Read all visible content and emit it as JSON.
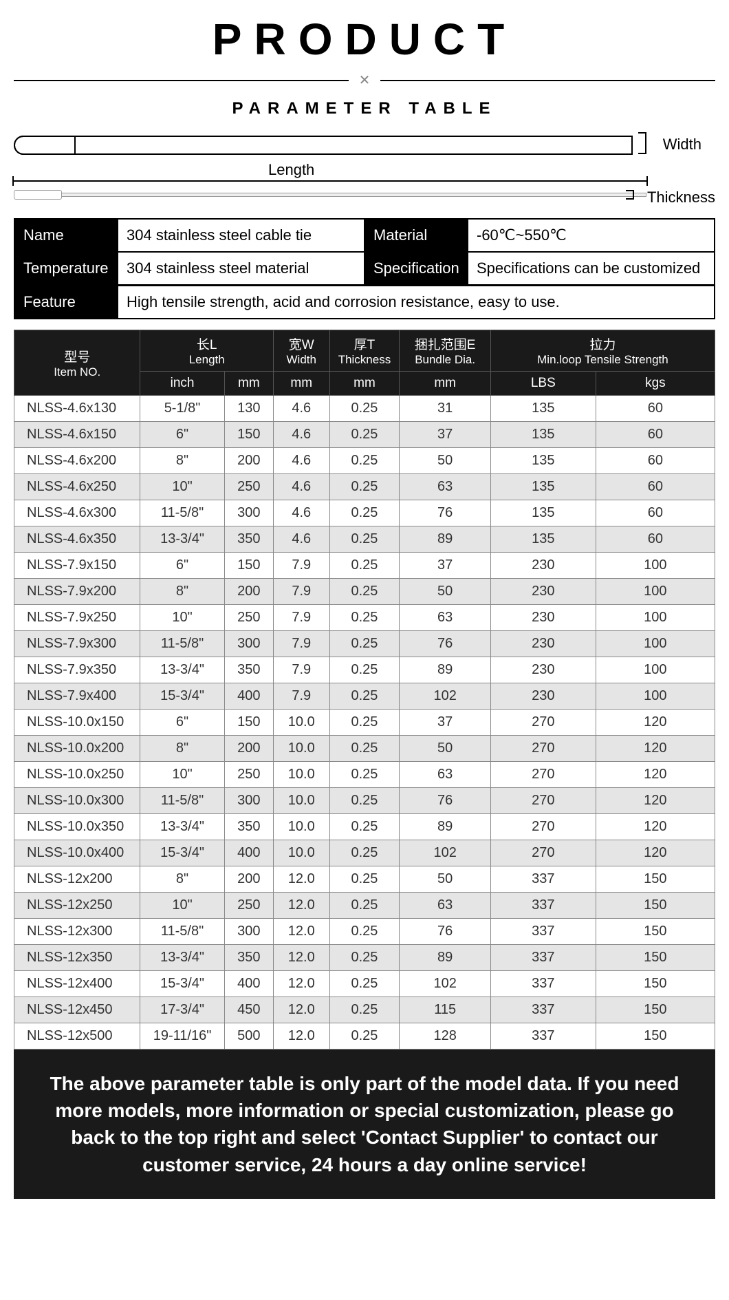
{
  "title": "PRODUCT",
  "subtitle": "PARAMETER TABLE",
  "diagram": {
    "width_label": "Width",
    "length_label": "Length",
    "thickness_label": "Thickness"
  },
  "info": {
    "name_label": "Name",
    "name_value": "304 stainless steel cable tie",
    "material_label": "Material",
    "material_value": "-60℃~550℃",
    "temperature_label": "Temperature",
    "temperature_value": "304 stainless steel material",
    "specification_label": "Specification",
    "specification_value": "Specifications can be customized",
    "feature_label": "Feature",
    "feature_value": "High tensile strength, acid and corrosion resistance, easy to use."
  },
  "table": {
    "headers": {
      "item_cn": "型号",
      "item_en": "Item NO.",
      "length_cn": "长L",
      "length_en": "Length",
      "width_cn": "宽W",
      "width_en": "Width",
      "thickness_cn": "厚T",
      "thickness_en": "Thickness",
      "bundle_cn": "捆扎范围E",
      "bundle_en": "Bundle Dia.",
      "tensile_cn": "拉力",
      "tensile_en": "Min.loop Tensile Strength",
      "unit_inch": "inch",
      "unit_mm": "mm",
      "unit_lbs": "LBS",
      "unit_kgs": "kgs"
    },
    "rows": [
      [
        "NLSS-4.6x130",
        "5-1/8\"",
        "130",
        "4.6",
        "0.25",
        "31",
        "135",
        "60"
      ],
      [
        "NLSS-4.6x150",
        "6\"",
        "150",
        "4.6",
        "0.25",
        "37",
        "135",
        "60"
      ],
      [
        "NLSS-4.6x200",
        "8\"",
        "200",
        "4.6",
        "0.25",
        "50",
        "135",
        "60"
      ],
      [
        "NLSS-4.6x250",
        "10\"",
        "250",
        "4.6",
        "0.25",
        "63",
        "135",
        "60"
      ],
      [
        "NLSS-4.6x300",
        "11-5/8\"",
        "300",
        "4.6",
        "0.25",
        "76",
        "135",
        "60"
      ],
      [
        "NLSS-4.6x350",
        "13-3/4\"",
        "350",
        "4.6",
        "0.25",
        "89",
        "135",
        "60"
      ],
      [
        "NLSS-7.9x150",
        "6\"",
        "150",
        "7.9",
        "0.25",
        "37",
        "230",
        "100"
      ],
      [
        "NLSS-7.9x200",
        "8\"",
        "200",
        "7.9",
        "0.25",
        "50",
        "230",
        "100"
      ],
      [
        "NLSS-7.9x250",
        "10\"",
        "250",
        "7.9",
        "0.25",
        "63",
        "230",
        "100"
      ],
      [
        "NLSS-7.9x300",
        "11-5/8\"",
        "300",
        "7.9",
        "0.25",
        "76",
        "230",
        "100"
      ],
      [
        "NLSS-7.9x350",
        "13-3/4\"",
        "350",
        "7.9",
        "0.25",
        "89",
        "230",
        "100"
      ],
      [
        "NLSS-7.9x400",
        "15-3/4\"",
        "400",
        "7.9",
        "0.25",
        "102",
        "230",
        "100"
      ],
      [
        "NLSS-10.0x150",
        "6\"",
        "150",
        "10.0",
        "0.25",
        "37",
        "270",
        "120"
      ],
      [
        "NLSS-10.0x200",
        "8\"",
        "200",
        "10.0",
        "0.25",
        "50",
        "270",
        "120"
      ],
      [
        "NLSS-10.0x250",
        "10\"",
        "250",
        "10.0",
        "0.25",
        "63",
        "270",
        "120"
      ],
      [
        "NLSS-10.0x300",
        "11-5/8\"",
        "300",
        "10.0",
        "0.25",
        "76",
        "270",
        "120"
      ],
      [
        "NLSS-10.0x350",
        "13-3/4\"",
        "350",
        "10.0",
        "0.25",
        "89",
        "270",
        "120"
      ],
      [
        "NLSS-10.0x400",
        "15-3/4\"",
        "400",
        "10.0",
        "0.25",
        "102",
        "270",
        "120"
      ],
      [
        "NLSS-12x200",
        "8\"",
        "200",
        "12.0",
        "0.25",
        "50",
        "337",
        "150"
      ],
      [
        "NLSS-12x250",
        "10\"",
        "250",
        "12.0",
        "0.25",
        "63",
        "337",
        "150"
      ],
      [
        "NLSS-12x300",
        "11-5/8\"",
        "300",
        "12.0",
        "0.25",
        "76",
        "337",
        "150"
      ],
      [
        "NLSS-12x350",
        "13-3/4\"",
        "350",
        "12.0",
        "0.25",
        "89",
        "337",
        "150"
      ],
      [
        "NLSS-12x400",
        "15-3/4\"",
        "400",
        "12.0",
        "0.25",
        "102",
        "337",
        "150"
      ],
      [
        "NLSS-12x450",
        "17-3/4\"",
        "450",
        "12.0",
        "0.25",
        "115",
        "337",
        "150"
      ],
      [
        "NLSS-12x500",
        "19-11/16\"",
        "500",
        "12.0",
        "0.25",
        "128",
        "337",
        "150"
      ]
    ]
  },
  "footer_note": "The above parameter table is only part of the model data. If you need more models, more information or special customization, please go back to the top right and select 'Contact Supplier' to contact our customer service, 24 hours a day online service!",
  "colors": {
    "header_bg": "#1a1a1a",
    "row_odd": "#ffffff",
    "row_even": "#e5e5e5",
    "border": "#888888"
  },
  "column_widths_pct": [
    18,
    12,
    7,
    8,
    10,
    13,
    15,
    17
  ]
}
